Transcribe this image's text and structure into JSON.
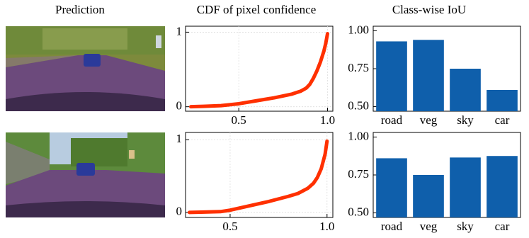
{
  "column_titles": [
    "Prediction",
    "CDF of pixel confidence",
    "Class-wise IoU"
  ],
  "chart_data": [
    {
      "type": "line",
      "color": "#ff3000",
      "grid": true,
      "x": [
        0.23,
        0.3,
        0.4,
        0.5,
        0.6,
        0.7,
        0.8,
        0.85,
        0.88,
        0.9,
        0.92,
        0.94,
        0.96,
        0.98,
        0.99,
        1.0
      ],
      "values": [
        0,
        0.005,
        0.015,
        0.04,
        0.08,
        0.12,
        0.17,
        0.21,
        0.25,
        0.3,
        0.38,
        0.48,
        0.6,
        0.75,
        0.85,
        0.98
      ],
      "xlim": [
        0.2,
        1.03
      ],
      "ylim": [
        -0.06,
        1.08
      ],
      "xticks": [
        0.5,
        {
          "value": 1,
          "label": "1.0"
        }
      ],
      "yticks": [
        0,
        1
      ]
    },
    {
      "type": "bar",
      "color": "#0f5fab",
      "categories": [
        "road",
        "veg",
        "sky",
        "car"
      ],
      "values": [
        0.93,
        0.94,
        0.75,
        0.61
      ],
      "ylim": [
        0.47,
        1.03
      ],
      "yticks": [
        {
          "value": 0.5,
          "label": "0.50"
        },
        {
          "value": 0.75,
          "label": "0.75"
        },
        {
          "value": 1,
          "label": "1.00"
        }
      ]
    },
    {
      "type": "line",
      "color": "#ff3000",
      "grid": true,
      "x": [
        0.29,
        0.35,
        0.45,
        0.5,
        0.6,
        0.7,
        0.8,
        0.85,
        0.9,
        0.93,
        0.95,
        0.97,
        0.98,
        0.99,
        1.0
      ],
      "values": [
        0,
        0.003,
        0.01,
        0.03,
        0.09,
        0.15,
        0.22,
        0.26,
        0.33,
        0.4,
        0.48,
        0.6,
        0.7,
        0.8,
        0.98
      ],
      "xlim": [
        0.27,
        1.03
      ],
      "ylim": [
        -0.07,
        1.1
      ],
      "xticks": [
        0.5,
        {
          "value": 1,
          "label": "1.0"
        }
      ],
      "yticks": [
        0,
        1
      ]
    },
    {
      "type": "bar",
      "color": "#0f5fab",
      "categories": [
        "road",
        "veg",
        "sky",
        "car"
      ],
      "values": [
        0.86,
        0.75,
        0.865,
        0.875
      ],
      "ylim": [
        0.47,
        1.03
      ],
      "yticks": [
        {
          "value": 0.5,
          "label": "0.50"
        },
        {
          "value": 0.75,
          "label": "0.75"
        },
        {
          "value": 1,
          "label": "1.00"
        }
      ]
    }
  ]
}
